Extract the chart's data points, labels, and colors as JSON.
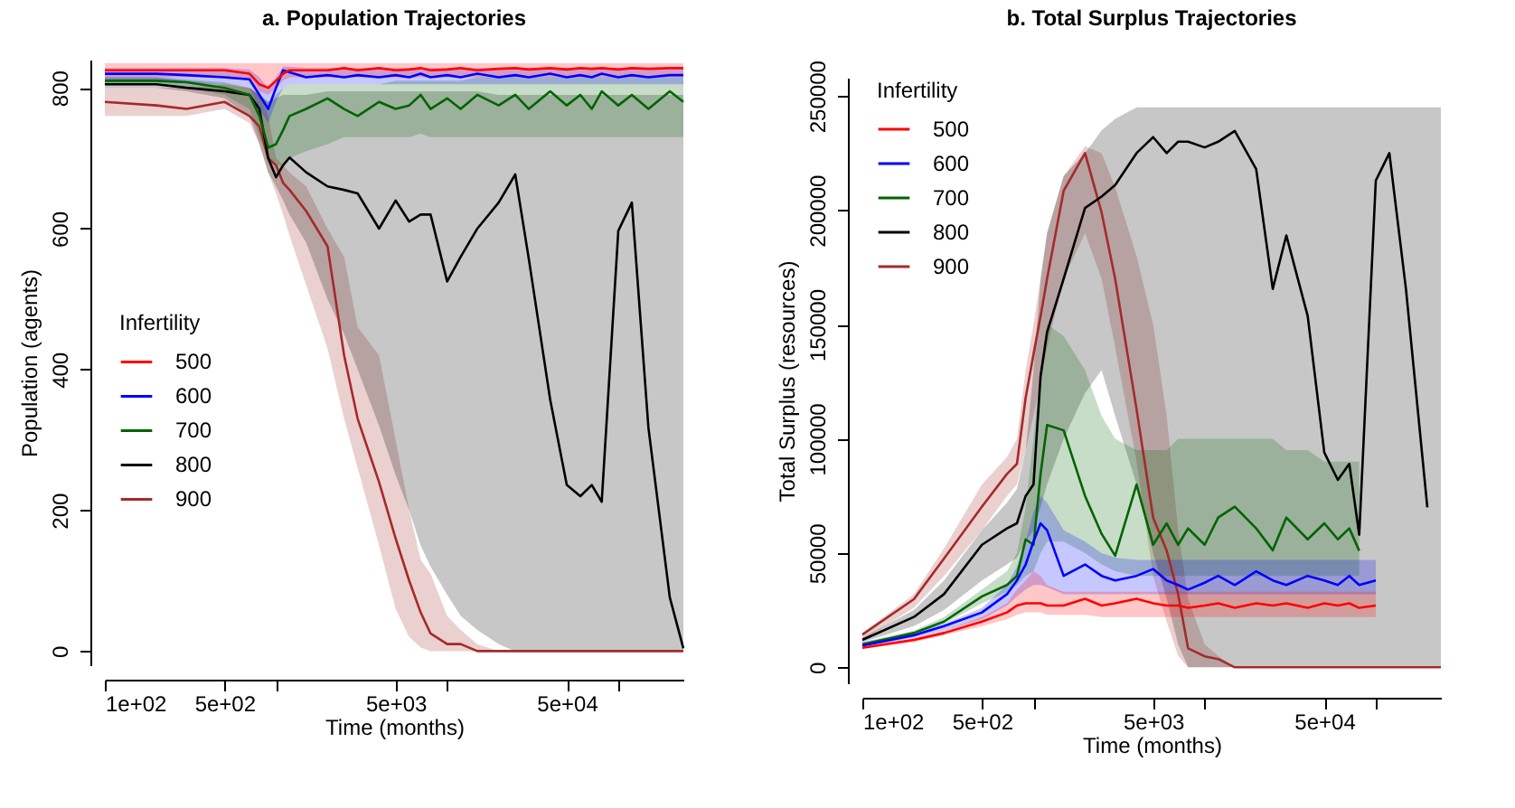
{
  "chart_data": [
    {
      "type": "line",
      "title": "a. Population Trajectories",
      "xlabel": "Time (months)",
      "ylabel": "Population (agents)",
      "legend_title": "Infertility",
      "legend": "left",
      "log": "x",
      "grid": false,
      "xlim": [
        100,
        240000
      ],
      "ylim": [
        -20,
        840
      ],
      "xticks": [
        {
          "value": 100,
          "label": "1e+02"
        },
        {
          "value": 500,
          "label": "5e+02"
        },
        {
          "value": 1000,
          "label": null
        },
        {
          "value": 5000,
          "label": "5e+03"
        },
        {
          "value": 10000,
          "label": null
        },
        {
          "value": 50000,
          "label": "5e+04"
        },
        {
          "value": 100000,
          "label": null
        }
      ],
      "yticks": [
        0,
        200,
        400,
        600,
        800
      ],
      "x": [
        100,
        200,
        300,
        500,
        700,
        800,
        900,
        1000,
        1100,
        1200,
        1500,
        2000,
        2500,
        3000,
        4000,
        5000,
        6000,
        7000,
        8000,
        10000,
        12000,
        15000,
        20000,
        25000,
        30000,
        40000,
        50000,
        60000,
        70000,
        80000,
        100000,
        120000,
        150000,
        200000,
        240000
      ],
      "series": [
        {
          "name": "500",
          "color": "#ff0000",
          "values": [
            825,
            825,
            825,
            825,
            820,
            805,
            800,
            810,
            820,
            825,
            825,
            825,
            828,
            825,
            828,
            825,
            826,
            828,
            825,
            826,
            828,
            825,
            827,
            828,
            826,
            828,
            826,
            828,
            827,
            828,
            826,
            828,
            827,
            828,
            828
          ],
          "lower": [
            815,
            815,
            815,
            815,
            810,
            795,
            790,
            800,
            810,
            815,
            815,
            815,
            815,
            815,
            815,
            815,
            815,
            815,
            815,
            815,
            815,
            815,
            815,
            815,
            815,
            815,
            815,
            815,
            815,
            815,
            815,
            815,
            815,
            815,
            815
          ],
          "upper": [
            835,
            835,
            835,
            835,
            835,
            835,
            835,
            835,
            835,
            835,
            835,
            835,
            835,
            835,
            835,
            835,
            835,
            835,
            835,
            835,
            835,
            835,
            835,
            835,
            835,
            835,
            835,
            835,
            835,
            835,
            835,
            835,
            835,
            835,
            835
          ]
        },
        {
          "name": "600",
          "color": "#0000ff",
          "values": [
            820,
            820,
            818,
            815,
            812,
            790,
            770,
            800,
            825,
            822,
            815,
            818,
            815,
            818,
            815,
            818,
            815,
            820,
            815,
            818,
            815,
            820,
            815,
            818,
            815,
            820,
            815,
            818,
            815,
            820,
            815,
            818,
            815,
            818,
            818
          ],
          "lower": [
            810,
            810,
            808,
            805,
            800,
            770,
            750,
            780,
            800,
            805,
            805,
            805,
            805,
            805,
            805,
            805,
            805,
            805,
            805,
            805,
            805,
            805,
            805,
            805,
            805,
            805,
            805,
            805,
            805,
            805,
            805,
            805,
            805,
            805,
            805
          ],
          "upper": [
            828,
            828,
            828,
            828,
            826,
            815,
            800,
            815,
            830,
            830,
            828,
            828,
            828,
            828,
            828,
            828,
            828,
            828,
            828,
            828,
            828,
            828,
            828,
            828,
            828,
            828,
            828,
            828,
            828,
            828,
            828,
            828,
            828,
            828,
            828
          ]
        },
        {
          "name": "700",
          "color": "#006400",
          "values": [
            810,
            810,
            808,
            800,
            790,
            760,
            715,
            720,
            740,
            760,
            770,
            785,
            770,
            760,
            780,
            770,
            775,
            790,
            770,
            785,
            770,
            790,
            775,
            790,
            770,
            795,
            775,
            790,
            770,
            795,
            775,
            790,
            770,
            795,
            780
          ],
          "lower": [
            805,
            805,
            800,
            790,
            770,
            730,
            700,
            690,
            690,
            700,
            710,
            720,
            730,
            730,
            730,
            730,
            730,
            735,
            730,
            730,
            730,
            730,
            730,
            730,
            730,
            730,
            730,
            730,
            730,
            730,
            730,
            730,
            730,
            730,
            730
          ],
          "upper": [
            815,
            815,
            812,
            808,
            800,
            790,
            780,
            790,
            800,
            805,
            805,
            805,
            805,
            805,
            805,
            810,
            810,
            810,
            810,
            810,
            810,
            815,
            815,
            815,
            815,
            815,
            815,
            815,
            815,
            815,
            815,
            815,
            815,
            815,
            815
          ]
        },
        {
          "name": "800",
          "color": "#000000",
          "values": [
            805,
            805,
            800,
            795,
            790,
            770,
            700,
            673,
            690,
            701,
            680,
            660,
            655,
            650,
            600,
            640,
            610,
            620,
            620,
            525,
            560,
            600,
            637,
            677,
            557,
            357,
            236,
            220,
            236,
            212,
            597,
            637,
            317,
            76,
            4
          ],
          "lower": [
            800,
            800,
            795,
            785,
            760,
            720,
            680,
            660,
            640,
            620,
            580,
            500,
            450,
            400,
            320,
            250,
            200,
            150,
            120,
            80,
            50,
            30,
            10,
            0,
            0,
            0,
            0,
            0,
            0,
            0,
            0,
            0,
            0,
            0,
            0
          ],
          "upper": [
            815,
            815,
            810,
            805,
            800,
            790,
            780,
            785,
            790,
            790,
            790,
            795,
            795,
            795,
            795,
            795,
            795,
            795,
            795,
            795,
            795,
            795,
            790,
            790,
            790,
            790,
            790,
            790,
            790,
            790,
            790,
            790,
            790,
            790,
            790
          ]
        },
        {
          "name": "900",
          "color": "#a52a2a",
          "values": [
            780,
            775,
            770,
            780,
            760,
            745,
            700,
            690,
            665,
            655,
            625,
            575,
            420,
            330,
            240,
            160,
            100,
            55,
            25,
            10,
            10,
            0,
            0,
            0,
            0,
            0,
            0,
            0,
            0,
            0,
            0,
            0,
            0,
            0,
            0
          ],
          "lower": [
            760,
            760,
            760,
            770,
            750,
            720,
            680,
            650,
            620,
            590,
            520,
            430,
            330,
            260,
            150,
            60,
            20,
            5,
            0,
            0,
            0,
            0,
            0,
            0,
            0,
            0,
            0,
            0,
            0,
            0,
            0,
            0,
            0,
            0,
            0
          ],
          "upper": [
            800,
            800,
            800,
            805,
            800,
            790,
            760,
            700,
            690,
            680,
            660,
            600,
            560,
            460,
            420,
            300,
            200,
            130,
            110,
            50,
            30,
            10,
            0,
            0,
            0,
            0,
            0,
            0,
            0,
            0,
            0,
            0,
            0,
            0,
            0
          ]
        }
      ]
    },
    {
      "type": "line",
      "title": "b. Total Surplus Trajectories",
      "xlabel": "Time (months)",
      "ylabel": "Total Surplus (resources)",
      "legend_title": "Infertility",
      "legend": "top left",
      "log": "x",
      "grid": false,
      "xlim": [
        100,
        240000
      ],
      "ylim": [
        -7000,
        258000
      ],
      "xticks": [
        {
          "value": 100,
          "label": "1e+02"
        },
        {
          "value": 500,
          "label": "5e+02"
        },
        {
          "value": 1000,
          "label": null
        },
        {
          "value": 5000,
          "label": "5e+03"
        },
        {
          "value": 10000,
          "label": null
        },
        {
          "value": 50000,
          "label": "5e+04"
        },
        {
          "value": 100000,
          "label": null
        }
      ],
      "yticks": [
        0,
        50000,
        100000,
        150000,
        200000,
        250000
      ],
      "x": [
        100,
        200,
        300,
        500,
        700,
        800,
        900,
        1000,
        1100,
        1200,
        1500,
        2000,
        2500,
        3000,
        4000,
        5000,
        6000,
        7000,
        8000,
        10000,
        12000,
        15000,
        20000,
        25000,
        30000,
        40000,
        50000,
        60000,
        70000,
        80000,
        100000,
        120000,
        150000,
        200000,
        240000
      ],
      "series": [
        {
          "name": "500",
          "color": "#ff0000",
          "values": [
            8500,
            12000,
            15000,
            20000,
            24000,
            27000,
            28000,
            28000,
            28000,
            27000,
            27000,
            30000,
            27000,
            28000,
            30000,
            28000,
            27000,
            27000,
            26000,
            27000,
            28000,
            26000,
            28000,
            27000,
            28000,
            26000,
            28000,
            27000,
            28000,
            26000,
            27000,
            null,
            null,
            null,
            null
          ],
          "lower": [
            8000,
            11000,
            14000,
            18000,
            21000,
            23000,
            24000,
            24000,
            24000,
            23000,
            23000,
            23000,
            22000,
            22000,
            22000,
            22000,
            22000,
            22000,
            22000,
            22000,
            22000,
            22000,
            22000,
            22000,
            22000,
            22000,
            22000,
            22000,
            22000,
            22000,
            22000,
            null,
            null,
            null,
            null
          ],
          "upper": [
            9500,
            13000,
            16000,
            22000,
            28000,
            34000,
            38000,
            42000,
            40000,
            36000,
            33000,
            33000,
            33000,
            33000,
            33000,
            33000,
            33000,
            33000,
            33000,
            33000,
            33000,
            33000,
            33000,
            33000,
            33000,
            33000,
            33000,
            33000,
            33000,
            33000,
            33000,
            null,
            null,
            null,
            null
          ]
        },
        {
          "name": "600",
          "color": "#0000ff",
          "values": [
            9500,
            14000,
            18000,
            24000,
            32000,
            38000,
            45000,
            55000,
            63000,
            60000,
            40000,
            45000,
            40000,
            38000,
            40000,
            43000,
            38000,
            36000,
            34000,
            37000,
            40000,
            36000,
            42000,
            38000,
            36000,
            40000,
            38000,
            36000,
            40000,
            36000,
            38000,
            null,
            null,
            null,
            null
          ],
          "lower": [
            9000,
            13000,
            16000,
            21000,
            27000,
            31000,
            34000,
            36000,
            36000,
            35000,
            32000,
            32000,
            32000,
            32000,
            32000,
            32000,
            32000,
            32000,
            32000,
            32000,
            32000,
            32000,
            32000,
            32000,
            32000,
            32000,
            32000,
            32000,
            32000,
            32000,
            32000,
            null,
            null,
            null,
            null
          ],
          "upper": [
            11000,
            15000,
            19000,
            26000,
            36000,
            44000,
            55000,
            68000,
            75000,
            72000,
            60000,
            55000,
            50000,
            48000,
            47000,
            47000,
            47000,
            47000,
            47000,
            47000,
            47000,
            47000,
            47000,
            47000,
            47000,
            47000,
            47000,
            47000,
            47000,
            47000,
            47000,
            null,
            null,
            null,
            null
          ]
        },
        {
          "name": "700",
          "color": "#006400",
          "values": [
            10000,
            15000,
            20000,
            31000,
            36000,
            40000,
            56000,
            53600,
            84600,
            106000,
            103700,
            75000,
            58400,
            48800,
            80000,
            53600,
            63000,
            53600,
            60800,
            53600,
            65500,
            70300,
            60800,
            51200,
            65500,
            56000,
            63000,
            56000,
            60800,
            51000,
            null,
            null,
            null,
            null,
            null
          ],
          "lower": [
            9500,
            14000,
            19000,
            28000,
            33000,
            36000,
            40000,
            42000,
            50000,
            55000,
            55000,
            50000,
            45000,
            42000,
            40000,
            40000,
            40000,
            40000,
            40000,
            40000,
            40000,
            40000,
            40000,
            40000,
            40000,
            40000,
            40000,
            40000,
            40000,
            40000,
            null,
            null,
            null,
            null,
            null
          ],
          "upper": [
            11000,
            16000,
            22000,
            34000,
            42000,
            50000,
            70000,
            100000,
            130000,
            150000,
            145000,
            130000,
            110000,
            100000,
            95000,
            95000,
            95000,
            100000,
            100000,
            100000,
            100000,
            100000,
            100000,
            100000,
            95000,
            95000,
            90000,
            90000,
            90000,
            90000,
            null,
            null,
            null,
            null,
            null
          ]
        },
        {
          "name": "800",
          "color": "#000000",
          "values": [
            12000,
            22000,
            32000,
            53600,
            60800,
            63000,
            75000,
            80000,
            127500,
            146600,
            170000,
            201000,
            206000,
            211000,
            225000,
            232000,
            225000,
            230000,
            230000,
            227500,
            230000,
            234700,
            218000,
            165600,
            189000,
            153700,
            94000,
            82000,
            89000,
            58000,
            213000,
            225000,
            165600,
            70000,
            null
          ],
          "lower": [
            11000,
            18000,
            25000,
            38000,
            45000,
            48000,
            55000,
            60000,
            70000,
            80000,
            100000,
            120000,
            130000,
            110000,
            80000,
            50000,
            30000,
            10000,
            0,
            0,
            0,
            0,
            0,
            0,
            0,
            0,
            0,
            0,
            0,
            0,
            0,
            0,
            0,
            0,
            0
          ],
          "upper": [
            13000,
            25000,
            38000,
            60000,
            72000,
            78000,
            95000,
            130000,
            170000,
            190000,
            215000,
            225000,
            235000,
            240000,
            245000,
            245000,
            245000,
            245000,
            245000,
            245000,
            245000,
            245000,
            245000,
            245000,
            245000,
            245000,
            245000,
            245000,
            245000,
            245000,
            245000,
            245000,
            245000,
            245000,
            245000
          ]
        },
        {
          "name": "900",
          "color": "#a52a2a",
          "values": [
            14300,
            29800,
            47600,
            70300,
            84600,
            89000,
            118000,
            137000,
            153700,
            170000,
            208500,
            225000,
            199000,
            170000,
            113000,
            65500,
            51000,
            32000,
            8300,
            4800,
            3600,
            0,
            0,
            0,
            0,
            0,
            0,
            0,
            0,
            0,
            0,
            0,
            0,
            0,
            0
          ],
          "lower": [
            12000,
            26000,
            40000,
            60000,
            75000,
            80000,
            95000,
            110000,
            125000,
            140000,
            170000,
            190000,
            170000,
            140000,
            90000,
            40000,
            20000,
            5000,
            0,
            0,
            0,
            0,
            0,
            0,
            0,
            0,
            0,
            0,
            0,
            0,
            0,
            0,
            0,
            0,
            0
          ],
          "upper": [
            15000,
            32000,
            52000,
            80000,
            92000,
            100000,
            130000,
            150000,
            170000,
            190000,
            215000,
            228000,
            225000,
            210000,
            180000,
            150000,
            110000,
            60000,
            30000,
            10000,
            5000,
            0,
            0,
            0,
            0,
            0,
            0,
            0,
            0,
            0,
            0,
            0,
            0,
            0,
            0
          ]
        }
      ]
    }
  ]
}
